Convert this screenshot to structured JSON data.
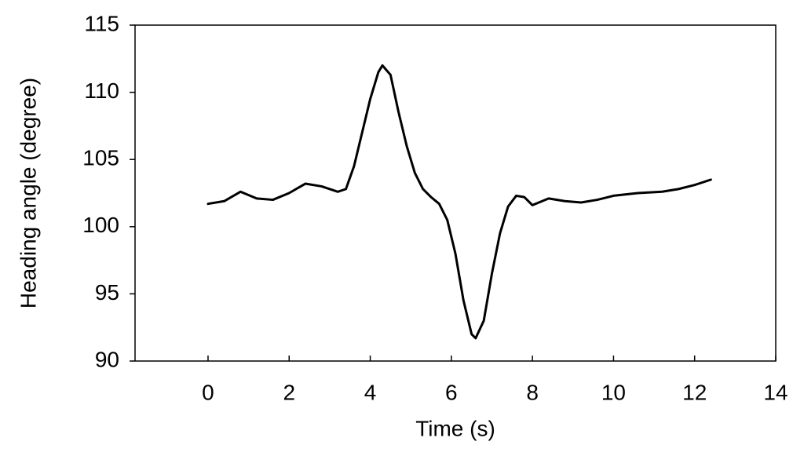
{
  "chart_data": {
    "type": "line",
    "x_label": "Time (s)",
    "y_label": "Heading angle (degree)",
    "x": [
      0,
      0.4,
      0.8,
      1.2,
      1.6,
      2.0,
      2.4,
      2.8,
      3.2,
      3.4,
      3.6,
      3.8,
      4.0,
      4.2,
      4.3,
      4.5,
      4.7,
      4.9,
      5.1,
      5.3,
      5.5,
      5.7,
      5.9,
      6.1,
      6.3,
      6.5,
      6.6,
      6.8,
      7.0,
      7.2,
      7.4,
      7.6,
      7.8,
      8.0,
      8.4,
      8.8,
      9.2,
      9.6,
      10.0,
      10.6,
      11.2,
      11.6,
      12.0,
      12.4
    ],
    "values": [
      101.7,
      101.9,
      102.6,
      102.1,
      102.0,
      102.5,
      103.2,
      103.0,
      102.6,
      102.8,
      104.5,
      107.0,
      109.5,
      111.5,
      112.0,
      111.3,
      108.5,
      106.0,
      104.0,
      102.8,
      102.2,
      101.7,
      100.5,
      98.0,
      94.5,
      92.0,
      91.7,
      93.0,
      96.5,
      99.5,
      101.5,
      102.3,
      102.2,
      101.6,
      102.1,
      101.9,
      101.8,
      102.0,
      102.3,
      102.5,
      102.6,
      102.8,
      103.1,
      103.5
    ],
    "color": "#000000",
    "xlim": [
      -1.8,
      14
    ],
    "xticks": [
      0,
      2,
      4,
      6,
      8,
      10,
      12,
      14
    ],
    "ylim": [
      90,
      115
    ],
    "yticks": [
      90,
      95,
      100,
      105,
      110,
      115
    ],
    "grid": false
  }
}
